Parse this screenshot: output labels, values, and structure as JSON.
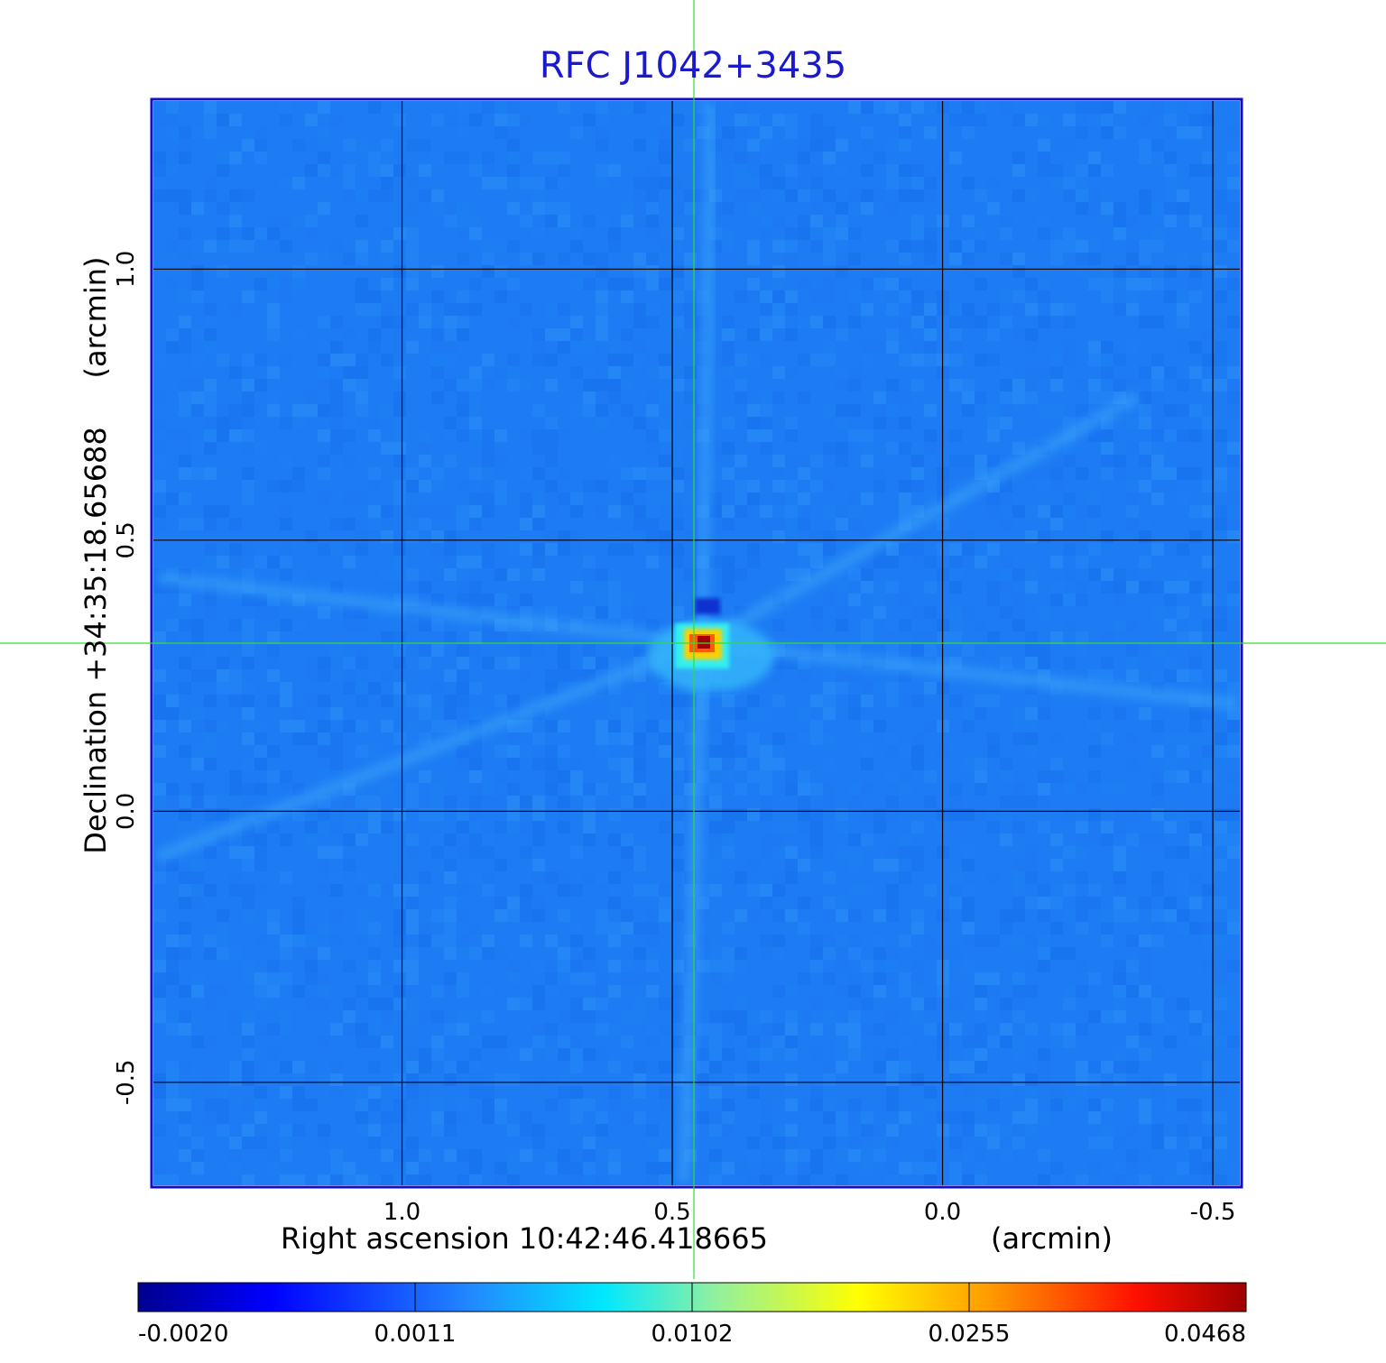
{
  "chart_data": {
    "type": "heatmap",
    "title": "RFC J1042+3435",
    "xlabel": "Right ascension  10:42:46.418665",
    "x_unit": "(arcmin)",
    "ylabel": "Declination  +34:35:18.65688",
    "y_unit": "(arcmin)",
    "xlim": [
      1.46,
      -0.55
    ],
    "ylim": [
      -0.69,
      1.31
    ],
    "x_ticks": [
      1.0,
      0.5,
      0.0,
      -0.5
    ],
    "x_tick_labels": [
      "1.0",
      "0.5",
      "0.0",
      "-0.5"
    ],
    "y_ticks": [
      1.0,
      0.5,
      0.0,
      -0.5
    ],
    "y_tick_labels": [
      "1.0",
      "0.5",
      "0.0",
      "-0.5"
    ],
    "grid": true,
    "crosshair": {
      "x": 0.46,
      "y": 0.31,
      "color": "#33dd33"
    },
    "source_peak": {
      "x": 0.445,
      "y": 0.31,
      "value": 0.0468
    },
    "background_value": 0.0008,
    "colormap": "jet",
    "colorbar": {
      "orientation": "horizontal",
      "ticks": [
        -0.002,
        0.0011,
        0.0102,
        0.0255,
        0.0468
      ],
      "tick_labels": [
        "-0.0020",
        "0.0011",
        "0.0102",
        "0.0255",
        "0.0468"
      ]
    },
    "colors": {
      "frame": "#1010cc",
      "title": "#1a1acc",
      "grid": "#000000"
    }
  }
}
